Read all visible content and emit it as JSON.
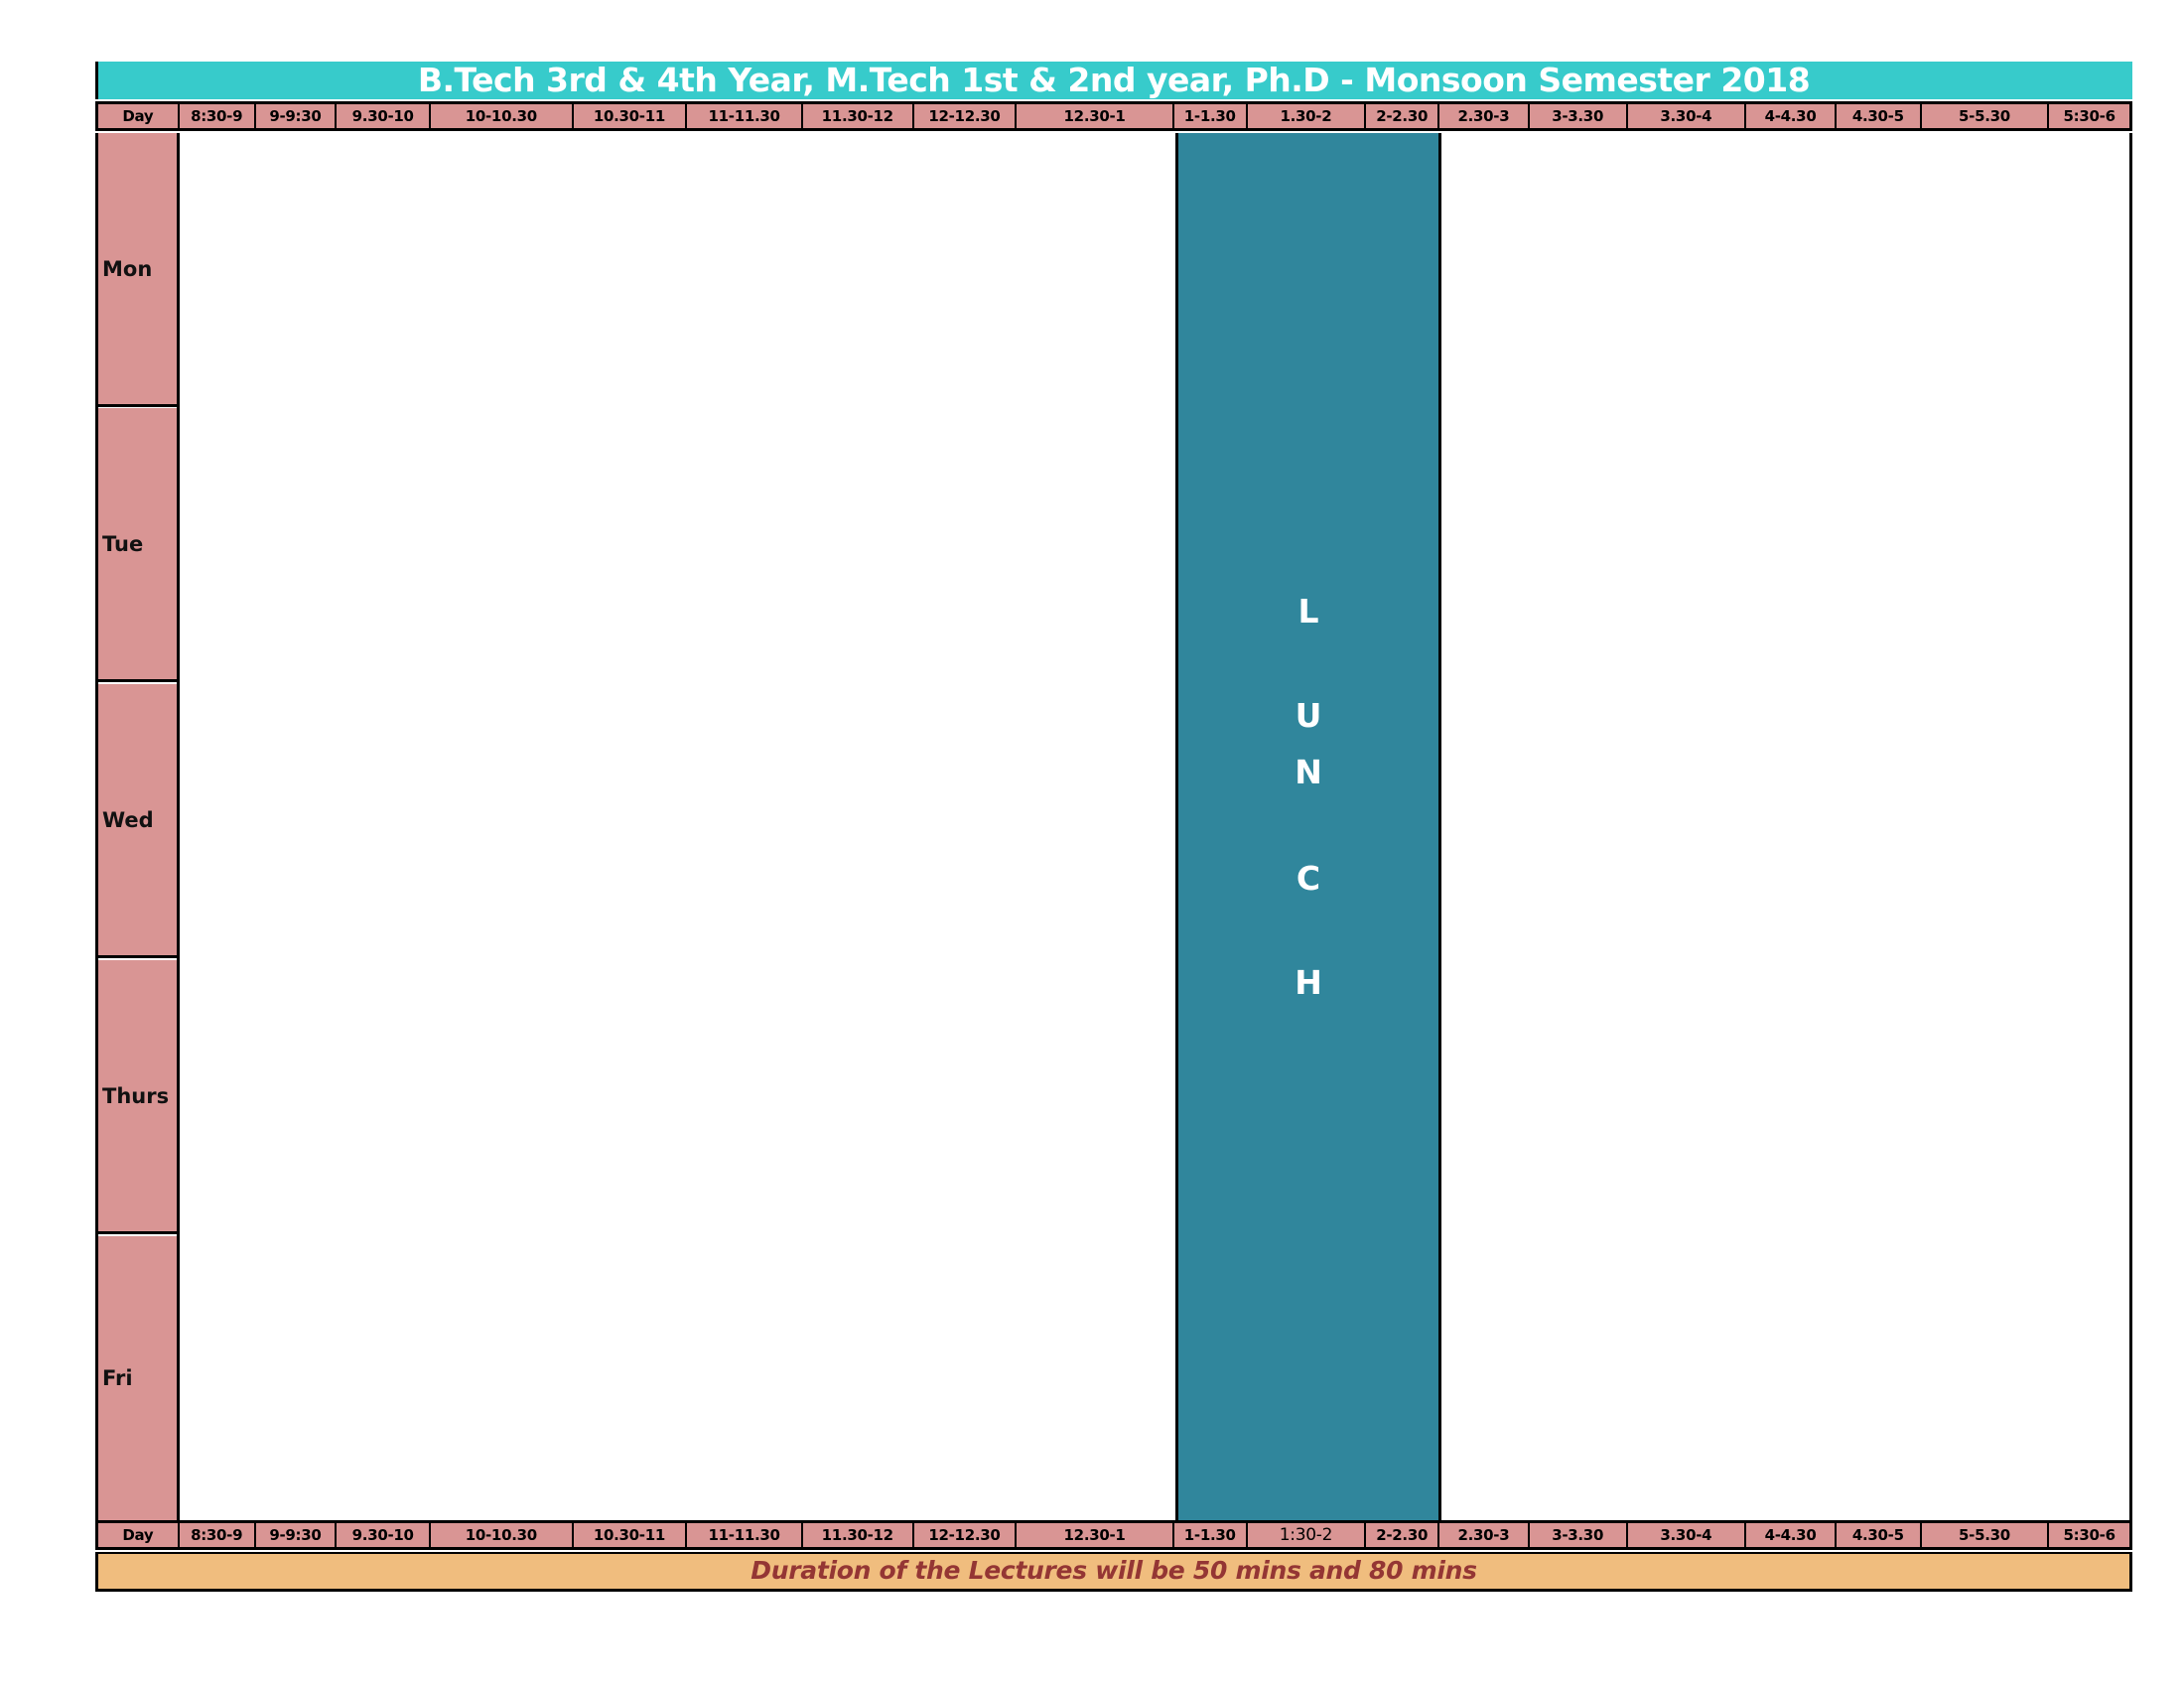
{
  "title": "B.Tech 3rd & 4th  Year, M.Tech 1st & 2nd year, Ph.D - Monsoon Semester 2018",
  "header_row": {
    "day_label": "Day",
    "slots": [
      "8:30-9",
      "9-9:30",
      "9.30-10",
      "10-10.30",
      "10.30-11",
      "11-11.30",
      "11.30-12",
      "12-12.30",
      "12.30-1",
      "1-1.30",
      "1.30-2",
      "2-2.30",
      "2.30-3",
      "3-3.30",
      "3.30-4",
      "4-4.30",
      "4.30-5",
      "5-5.30",
      "5:30-6"
    ]
  },
  "footer_row": {
    "day_label": "Day",
    "slots": [
      "8:30-9",
      "9-9:30",
      "9.30-10",
      "10-10.30",
      "10.30-11",
      "11-11.30",
      "11.30-12",
      "12-12.30",
      "12.30-1",
      "1-1.30",
      "1:30-2",
      "2-2.30",
      "2.30-3",
      "3-3.30",
      "3.30-4",
      "4-4.30",
      "4.30-5",
      "5-5.30",
      "5:30-6"
    ]
  },
  "days": [
    "Mon",
    "Tue",
    "Wed",
    "Thurs",
    "Fri"
  ],
  "lunch_letters": [
    "L",
    "U",
    "N",
    "C",
    "H"
  ],
  "note": "Duration of the Lectures will be 50 mins and 80 mins",
  "colors": {
    "title_bg": "#37cbcb",
    "header_bg": "#d99594",
    "lunch_bg": "#30869c",
    "note_bg": "#f0bd7e",
    "note_text": "#943634"
  }
}
